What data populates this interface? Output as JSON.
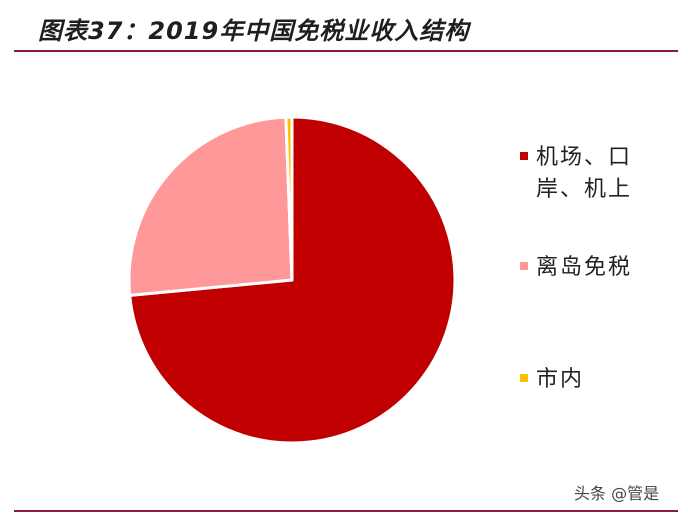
{
  "header": {
    "title": "图表37：2019年中国免税业收入结构"
  },
  "chart_data": {
    "type": "pie",
    "title": "图表37：2019年中国免税业收入结构",
    "slices": [
      {
        "label": "机场、口岸、机上",
        "value": 73.5,
        "color": "#c00000"
      },
      {
        "label": "离岛免税",
        "value": 25.9,
        "color": "#ff9999"
      },
      {
        "label": "市内",
        "value": 0.6,
        "color": "#ffc000"
      }
    ],
    "legend_position": "right"
  },
  "legend": {
    "items": [
      {
        "label": "机场、口岸、机上",
        "color": "#c00000"
      },
      {
        "label": "离岛免税",
        "color": "#ff9999"
      },
      {
        "label": "市内",
        "color": "#ffc000"
      }
    ]
  },
  "watermark": {
    "text": "头条 @管是"
  }
}
